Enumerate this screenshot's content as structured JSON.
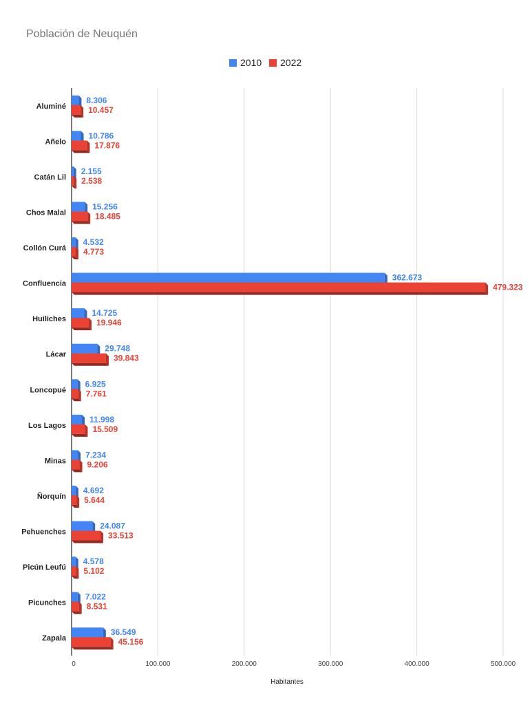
{
  "chart_data": {
    "type": "bar",
    "orientation": "horizontal",
    "style": "3d",
    "title": "Población de Neuquén",
    "xlabel": "Habitantes",
    "ylabel": "",
    "xlim": [
      0,
      500000
    ],
    "x_ticks": [
      0,
      100000,
      200000,
      300000,
      400000,
      500000
    ],
    "x_tick_labels": [
      "0",
      "100.000",
      "200.000",
      "300.000",
      "400.000",
      "500.000"
    ],
    "grid": true,
    "legend_position": "top",
    "categories": [
      "Aluminé",
      "Añelo",
      "Catán Lil",
      "Chos Malal",
      "Collón Curá",
      "Confluencia",
      "Huiliches",
      "Lácar",
      "Loncopué",
      "Los Lagos",
      "Minas",
      "Ñorquín",
      "Pehuenches",
      "Picún Leufú",
      "Picunches",
      "Zapala"
    ],
    "series": [
      {
        "name": "2010",
        "color": "#4285f4",
        "values": [
          8306,
          10786,
          2155,
          15256,
          4532,
          362673,
          14725,
          29748,
          6925,
          11998,
          7234,
          4692,
          24087,
          4578,
          7022,
          36549
        ],
        "labels": [
          "8.306",
          "10.786",
          "2.155",
          "15.256",
          "4.532",
          "362.673",
          "14.725",
          "29.748",
          "6.925",
          "11.998",
          "7.234",
          "4.692",
          "24.087",
          "4.578",
          "7.022",
          "36.549"
        ]
      },
      {
        "name": "2022",
        "color": "#ea4335",
        "values": [
          10457,
          17876,
          2538,
          18485,
          4773,
          479323,
          19946,
          39843,
          7761,
          15509,
          9206,
          5644,
          33513,
          5102,
          8531,
          45156
        ],
        "labels": [
          "10.457",
          "17.876",
          "2.538",
          "18.485",
          "4.773",
          "479.323",
          "19.946",
          "39.843",
          "7.761",
          "15.509",
          "9.206",
          "5.644",
          "33.513",
          "5.102",
          "8.531",
          "45.156"
        ]
      }
    ]
  }
}
